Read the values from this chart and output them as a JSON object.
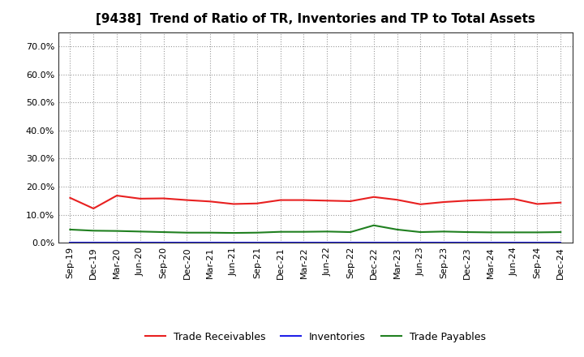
{
  "title": "[9438]  Trend of Ratio of TR, Inventories and TP to Total Assets",
  "x_labels": [
    "Sep-19",
    "Dec-19",
    "Mar-20",
    "Jun-20",
    "Sep-20",
    "Dec-20",
    "Mar-21",
    "Jun-21",
    "Sep-21",
    "Dec-21",
    "Mar-22",
    "Jun-22",
    "Sep-22",
    "Dec-22",
    "Mar-23",
    "Jun-23",
    "Sep-23",
    "Dec-23",
    "Mar-24",
    "Jun-24",
    "Sep-24",
    "Dec-24"
  ],
  "trade_receivables": [
    0.16,
    0.122,
    0.168,
    0.157,
    0.158,
    0.152,
    0.147,
    0.138,
    0.14,
    0.152,
    0.152,
    0.15,
    0.148,
    0.163,
    0.153,
    0.137,
    0.145,
    0.15,
    0.153,
    0.156,
    0.138,
    0.143
  ],
  "inventories": [
    0.002,
    0.002,
    0.002,
    0.002,
    0.002,
    0.002,
    0.002,
    0.002,
    0.002,
    0.002,
    0.002,
    0.002,
    0.002,
    0.002,
    0.002,
    0.002,
    0.002,
    0.002,
    0.002,
    0.002,
    0.002,
    0.002
  ],
  "trade_payables": [
    0.047,
    0.043,
    0.042,
    0.04,
    0.038,
    0.036,
    0.036,
    0.035,
    0.036,
    0.039,
    0.039,
    0.04,
    0.038,
    0.062,
    0.047,
    0.038,
    0.04,
    0.038,
    0.037,
    0.037,
    0.037,
    0.038
  ],
  "tr_color": "#e82020",
  "inv_color": "#2020e8",
  "tp_color": "#208020",
  "ylim_min": 0.0,
  "ylim_max": 0.75,
  "yticks": [
    0.0,
    0.1,
    0.2,
    0.3,
    0.4,
    0.5,
    0.6,
    0.7
  ],
  "legend_labels": [
    "Trade Receivables",
    "Inventories",
    "Trade Payables"
  ],
  "background_color": "#ffffff",
  "grid_color": "#999999",
  "line_width": 1.5,
  "title_fontsize": 11,
  "tick_fontsize": 8,
  "legend_fontsize": 9
}
